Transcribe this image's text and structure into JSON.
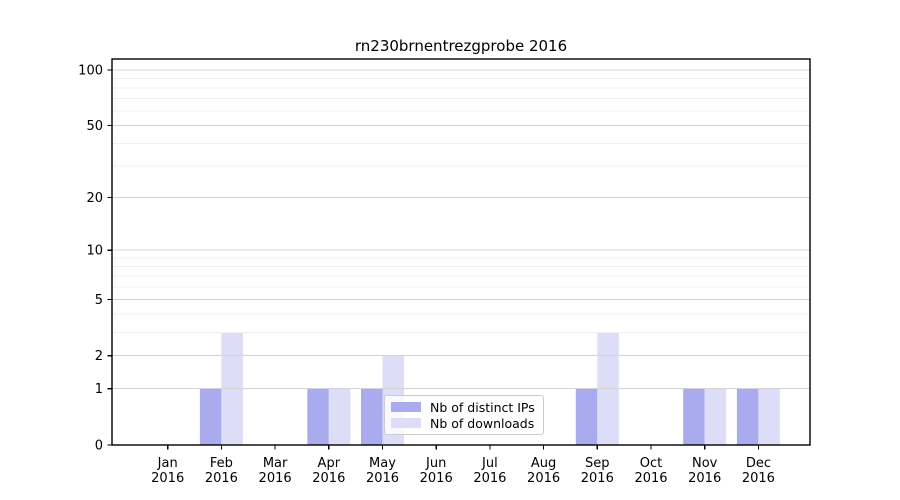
{
  "chart_data": {
    "type": "bar",
    "title": "rn230brnentrezgprobe 2016",
    "categories": [
      "Jan",
      "Feb",
      "Mar",
      "Apr",
      "May",
      "Jun",
      "Jul",
      "Aug",
      "Sep",
      "Oct",
      "Nov",
      "Dec"
    ],
    "year": "2016",
    "series": [
      {
        "name": "Nb of distinct IPs",
        "color": "#aaaaee",
        "values": [
          0,
          1,
          0,
          1,
          1,
          0,
          0,
          0,
          1,
          0,
          1,
          1
        ]
      },
      {
        "name": "Nb of downloads",
        "color": "#ddddf7",
        "values": [
          0,
          3,
          0,
          1,
          2,
          0,
          0,
          0,
          3,
          0,
          1,
          1
        ]
      }
    ],
    "xlabel": "",
    "ylabel": "",
    "yscale": "log10(value+1)",
    "yticks": [
      0,
      1,
      2,
      5,
      10,
      20,
      50,
      100
    ],
    "yticks_minor": [
      3,
      4,
      6,
      7,
      8,
      9,
      30,
      40,
      60,
      70,
      80,
      90
    ],
    "ylim": [
      0,
      115
    ],
    "grid": "horizontal-major-and-minor",
    "legend_position": "lower-center"
  }
}
